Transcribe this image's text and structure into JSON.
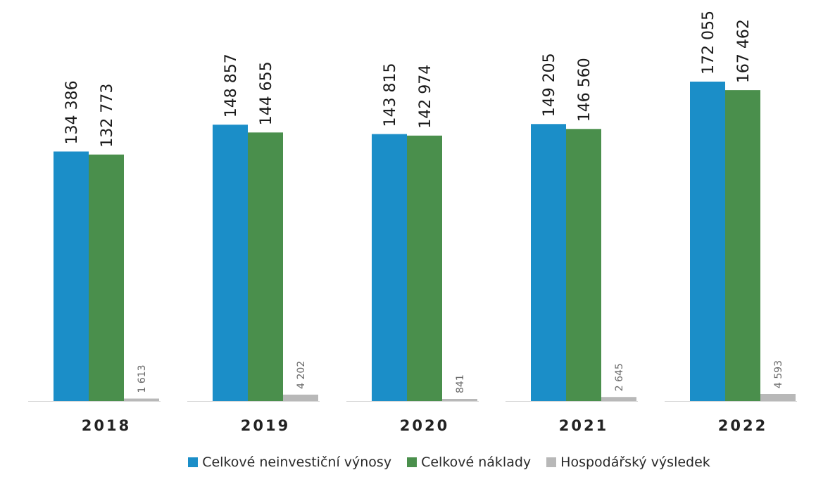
{
  "chart_data": {
    "type": "bar",
    "categories": [
      "2018",
      "2019",
      "2020",
      "2021",
      "2022"
    ],
    "series": [
      {
        "name": "Celkové neinvestiční výnosy",
        "color": "#1b8ec8",
        "values": [
          134386,
          148857,
          143815,
          149205,
          172055
        ],
        "labels": [
          "134 386",
          "148 857",
          "143 815",
          "149 205",
          "172 055"
        ]
      },
      {
        "name": "Celkové náklady",
        "color": "#4a8f4c",
        "values": [
          132773,
          144655,
          142974,
          146560,
          167462
        ],
        "labels": [
          "132 773",
          "144 655",
          "142 974",
          "146 560",
          "167 462"
        ]
      },
      {
        "name": "Hospodářský výsledek",
        "color": "#b8b8b8",
        "values": [
          1613,
          4202,
          841,
          2645,
          4593
        ],
        "labels": [
          "1 613",
          "4 202",
          "841",
          "2 645",
          "4 593"
        ]
      }
    ],
    "ylim": [
      0,
      172055
    ],
    "grid": false,
    "legend_position": "bottom-center"
  }
}
